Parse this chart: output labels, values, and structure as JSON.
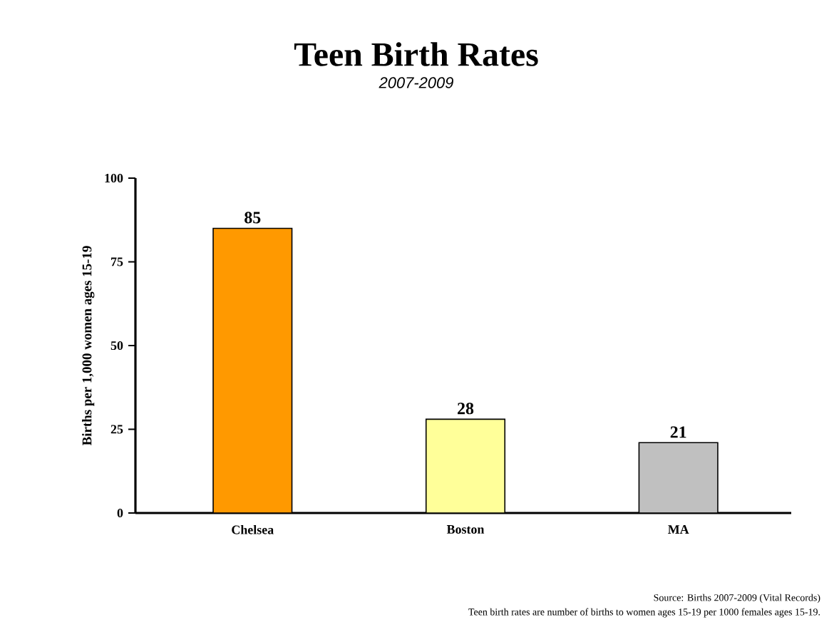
{
  "chart_data": {
    "type": "bar",
    "title": "Teen Birth Rates",
    "subtitle": "2007-2009",
    "ylabel": "Births per 1,000 women ages 15-19",
    "categories": [
      "Chelsea",
      "Boston",
      "MA"
    ],
    "values": [
      85,
      28,
      21
    ],
    "colors": [
      "#ff9900",
      "#ffff99",
      "#c0c0c0"
    ],
    "ylim": [
      0,
      100
    ],
    "yticks": [
      0,
      25,
      50,
      75,
      100
    ],
    "data_labels": true,
    "grid": false,
    "annotations": [
      "Source: Births 2007-2009 (Vital Records)",
      "Teen birth rates are number of births to women ages 15-19 per 1000 females ages 15-19."
    ]
  }
}
